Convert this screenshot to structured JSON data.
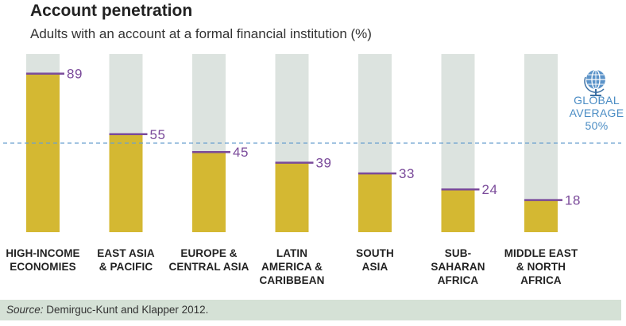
{
  "chart_data": {
    "type": "bar",
    "title": "Account penetration",
    "subtitle": "Adults with an account at a formal financial institution (%)",
    "categories": [
      [
        "HIGH-INCOME",
        "ECONOMIES"
      ],
      [
        "EAST ASIA",
        "& PACIFIC"
      ],
      [
        "EUROPE &",
        "CENTRAL ASIA"
      ],
      [
        "LATIN",
        "AMERICA &",
        "CARIBBEAN"
      ],
      [
        "SOUTH",
        "ASIA"
      ],
      [
        "SUB-",
        "SAHARAN",
        "AFRICA"
      ],
      [
        "MIDDLE EAST",
        "& NORTH",
        "AFRICA"
      ]
    ],
    "values": [
      89,
      55,
      45,
      39,
      33,
      24,
      18
    ],
    "ylim": [
      0,
      100
    ],
    "reference_line": {
      "value": 50,
      "label_lines": [
        "GLOBAL",
        "AVERAGE",
        "50%"
      ]
    },
    "colors": {
      "bar": "#d4b832",
      "background_bar": "#dce3df",
      "marker": "#7a4a9a",
      "value_text": "#7a4a9a",
      "reference": "#6aa0cf"
    }
  },
  "source": {
    "prefix": "Source:",
    "text": " Demirguc-Kunt and Klapper 2012."
  },
  "icons": {
    "globe": "globe-icon"
  }
}
